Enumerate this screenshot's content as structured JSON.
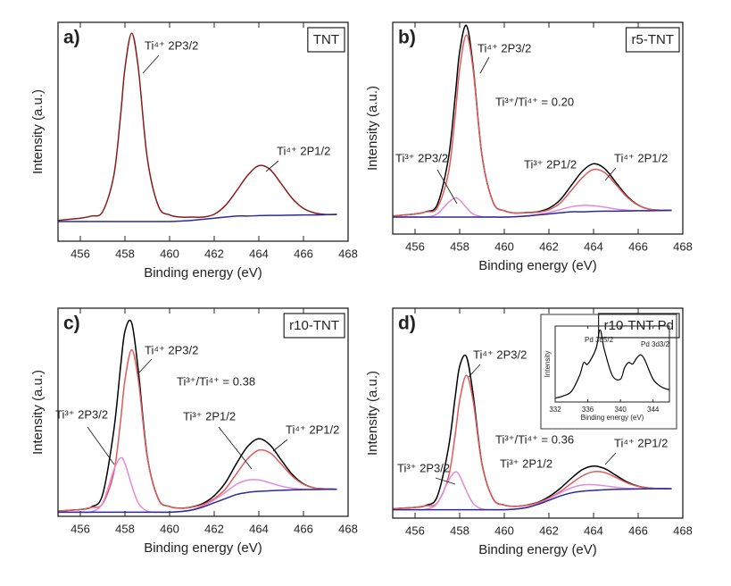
{
  "chart_data": [
    {
      "type": "line",
      "panel_label": "a)",
      "name": "TNT",
      "xlabel": "Binding energy (eV)",
      "ylabel": "Intensity (a.u.)",
      "x": [
        455,
        455.5,
        456,
        456.5,
        457,
        457.5,
        457.8,
        458,
        458.3,
        458.6,
        459,
        459.5,
        460,
        460.5,
        461,
        461.5,
        462,
        462.5,
        463,
        463.5,
        464,
        464.5,
        465,
        465.5,
        466,
        466.5,
        467,
        467.5
      ],
      "xlim": [
        455,
        468
      ],
      "xticks": [
        456,
        458,
        460,
        462,
        464,
        466,
        468
      ],
      "ylim": [
        0,
        100
      ],
      "series": [
        {
          "color": "#8b1a1a",
          "values": [
            9.5,
            10,
            10.5,
            11.5,
            13.5,
            30,
            57,
            79,
            95,
            79,
            38,
            16,
            12,
            11,
            11,
            11,
            12.3,
            16.3,
            23,
            30.1,
            34.5,
            32.8,
            26.3,
            19.5,
            15,
            12.9,
            12.2,
            12.3
          ]
        },
        {
          "color": "#2a2a9a",
          "values": [
            9,
            9,
            9,
            9,
            9,
            9,
            9,
            9,
            9,
            9,
            9,
            9,
            9,
            9.2,
            9.5,
            10,
            10.5,
            11,
            11.5,
            11.5,
            11.7,
            11.8,
            11.8,
            11.9,
            12,
            12,
            12.1,
            12.2
          ]
        }
      ],
      "annotations": [
        "Ti⁴⁺ 2P3/2",
        "Ti⁴⁺ 2P1/2"
      ]
    },
    {
      "type": "line",
      "panel_label": "b)",
      "name": "r5-TNT",
      "xlabel": "Binding energy (eV)",
      "ylabel": "Intensity (a.u.)",
      "x": [
        455,
        455.5,
        456,
        456.5,
        457,
        457.5,
        457.8,
        458,
        458.3,
        458.6,
        459,
        459.5,
        460,
        460.5,
        461,
        461.5,
        462,
        462.5,
        463,
        463.5,
        464,
        464.5,
        465,
        465.5,
        466,
        466.5,
        467,
        467.5
      ],
      "xlim": [
        455,
        468
      ],
      "xticks": [
        456,
        458,
        460,
        462,
        464,
        466,
        468
      ],
      "ylim": [
        0,
        100
      ],
      "series": [
        {
          "color": "#000000",
          "values": [
            8.5,
            9,
            9.5,
            10.6,
            14,
            36,
            65,
            86.1,
            98.5,
            79.5,
            37.2,
            15,
            11,
            9.9,
            10.2,
            10.5,
            12.2,
            16.1,
            22.9,
            29.7,
            33.2,
            30.9,
            24.4,
            17.9,
            13.7,
            11.7,
            11.3,
            11.2
          ]
        },
        {
          "color": "#e05a5a",
          "values": [
            8.5,
            9,
            9.5,
            10.5,
            12.5,
            29,
            56,
            78,
            94,
            78,
            37,
            15,
            11,
            9.9,
            10.1,
            10.3,
            11.5,
            14.6,
            20.5,
            26.7,
            30.5,
            29,
            23.4,
            17.5,
            13.6,
            11.7,
            11.3,
            11.2
          ]
        },
        {
          "color": "#e48ad8",
          "values": [
            8,
            8,
            8,
            8.1,
            9.5,
            15,
            17,
            16.1,
            12.5,
            9.5,
            8.2,
            8,
            8,
            8.2,
            8.6,
            9.2,
            10.2,
            11.5,
            12.9,
            13.5,
            13.4,
            12.7,
            11.8,
            11.3,
            11.1,
            11,
            11.1,
            11.2
          ]
        },
        {
          "color": "#2a2a9a",
          "values": [
            8,
            8,
            8,
            8,
            8,
            8,
            8,
            8,
            8,
            8,
            8,
            8,
            8,
            8.2,
            8.5,
            9,
            9.5,
            10,
            10.5,
            10.5,
            10.7,
            10.8,
            10.8,
            10.9,
            11,
            11,
            11.1,
            11.2
          ]
        }
      ],
      "annotations": [
        "Ti⁴⁺ 2P3/2",
        "Ti³⁺/Ti⁴⁺ = 0.20",
        "Ti³⁺ 2P3/2",
        "Ti³⁺ 2P1/2",
        "Ti⁴⁺ 2P1/2"
      ]
    },
    {
      "type": "line",
      "panel_label": "c)",
      "name": "r10-TNT",
      "xlabel": "Binding energy (eV)",
      "ylabel": "Intensity (a.u.)",
      "x": [
        455,
        455.5,
        456,
        456.5,
        457,
        457.5,
        457.8,
        458,
        458.3,
        458.6,
        459,
        459.5,
        460,
        460.5,
        461,
        461.5,
        462,
        462.5,
        463,
        463.5,
        464,
        464.5,
        465,
        465.5,
        466,
        466.5,
        467,
        467.5
      ],
      "xlim": [
        455,
        468
      ],
      "xticks": [
        456,
        458,
        460,
        462,
        464,
        466,
        468
      ],
      "ylim": [
        0,
        100
      ],
      "series": [
        {
          "color": "#000000",
          "values": [
            2.5,
            2.9,
            3.3,
            4.5,
            10.5,
            41.3,
            71.5,
            88.9,
            93,
            69.9,
            28.8,
            8.3,
            4.7,
            3.9,
            4.5,
            6.2,
            9.9,
            16.1,
            25.4,
            33.6,
            37.3,
            34.3,
            27.1,
            20.1,
            15.6,
            13.6,
            13.2,
            13
          ]
        },
        {
          "color": "#e05a5a",
          "values": [
            2.5,
            2.9,
            3.3,
            4.3,
            6.1,
            21,
            45.5,
            65.5,
            80,
            65.5,
            28.3,
            8.3,
            4.7,
            3.9,
            4.4,
            5.7,
            8.5,
            13.1,
            20.5,
            27.7,
            31.8,
            30.5,
            25.1,
            19.3,
            15.4,
            13.6,
            13.2,
            13
          ]
        },
        {
          "color": "#e48ad8",
          "values": [
            2,
            2,
            2,
            2.2,
            6.4,
            22.3,
            28,
            25.4,
            15,
            6.4,
            2.5,
            2,
            2,
            2.3,
            3.1,
            5,
            7.9,
            11.5,
            15.4,
            17.4,
            17.5,
            16.1,
            14.5,
            13.5,
            13,
            12.9,
            13,
            13
          ]
        },
        {
          "color": "#2a2a9a",
          "values": [
            2,
            2,
            2,
            2,
            2,
            2,
            2,
            2,
            2,
            2,
            2,
            2,
            2,
            2.3,
            3,
            4.5,
            6.5,
            8.5,
            10.5,
            11.5,
            12,
            12.3,
            12.5,
            12.7,
            12.8,
            12.9,
            13,
            13
          ]
        }
      ],
      "annotations": [
        "Ti⁴⁺ 2P3/2",
        "Ti³⁺/Ti⁴⁺ = 0.38",
        "Ti³⁺ 2P3/2",
        "Ti³⁺ 2P1/2",
        "Ti⁴⁺ 2P1/2"
      ]
    },
    {
      "type": "line",
      "panel_label": "d)",
      "name": "r10-TNT-Pd",
      "xlabel": "Binding energy (eV)",
      "ylabel": "Intensity (a.u.)",
      "x": [
        455,
        455.5,
        456,
        456.5,
        457,
        457.5,
        457.8,
        458,
        458.3,
        458.6,
        459,
        459.5,
        460,
        460.5,
        461,
        461.5,
        462,
        462.5,
        463,
        463.5,
        464,
        464.5,
        465,
        465.5,
        466,
        466.5,
        467,
        467.5
      ],
      "xlim": [
        455,
        468
      ],
      "xticks": [
        456,
        458,
        460,
        462,
        464,
        466,
        468
      ],
      "ylim": [
        0,
        100
      ],
      "series": [
        {
          "color": "#000000",
          "values": [
            4.4,
            4.8,
            5.1,
            6.1,
            10.4,
            33.6,
            57.7,
            72.3,
            77,
            59.2,
            25.9,
            9.2,
            6.2,
            5.6,
            6.2,
            7.5,
            10.2,
            14.1,
            18.9,
            23.1,
            24.8,
            23.6,
            20.4,
            17.2,
            15.2,
            14.3,
            14.1,
            14
          ]
        },
        {
          "color": "#e05a5a",
          "values": [
            4.4,
            4.8,
            5.1,
            5.9,
            7.3,
            19.6,
            39.7,
            56.1,
            68,
            56.1,
            25.6,
            9.2,
            6.2,
            5.6,
            6.1,
            7.3,
            9.5,
            12.6,
            16.5,
            20.1,
            22.1,
            21.7,
            19.4,
            16.8,
            15.1,
            14.3,
            14.1,
            14
          ]
        },
        {
          "color": "#e48ad8",
          "values": [
            4,
            4,
            4,
            4.2,
            7.1,
            18,
            22,
            20.2,
            13,
            7.1,
            4.3,
            4,
            4,
            4.3,
            5.1,
            6.7,
            9.2,
            12,
            14.4,
            15.8,
            15.9,
            15.4,
            14.7,
            14.2,
            14,
            14,
            14,
            14
          ]
        },
        {
          "color": "#2a2a9a",
          "values": [
            4,
            4,
            4,
            4,
            4,
            4,
            4,
            4,
            4,
            4,
            4,
            4,
            4,
            4.3,
            5,
            6.5,
            8.5,
            10.5,
            12,
            12.8,
            13.2,
            13.5,
            13.7,
            13.8,
            13.9,
            14,
            14,
            14
          ]
        }
      ],
      "annotations": [
        "Ti⁴⁺ 2P3/2",
        "Ti³⁺/Ti⁴⁺ = 0.36",
        "Ti³⁺ 2P3/2",
        "Ti³⁺ 2P1/2",
        "Ti⁴⁺ 2P1/2"
      ]
    },
    {
      "type": "line",
      "xlabel": "Binding energy (eV)",
      "ylabel": "Intensity",
      "x": [
        332,
        333,
        334,
        335,
        335.5,
        336,
        337,
        337.5,
        338,
        339,
        340,
        340.5,
        341,
        341.5,
        342,
        342.5,
        343,
        344,
        345,
        346
      ],
      "xlim": [
        332,
        346
      ],
      "xticks": [
        332,
        336,
        340,
        344
      ],
      "ylim": [
        0,
        100
      ],
      "series": [
        {
          "color": "#000000",
          "values": [
            5,
            8,
            14,
            35,
            52,
            50,
            70,
            95,
            70,
            35,
            30,
            45,
            52,
            50,
            58,
            62,
            55,
            30,
            20,
            16
          ]
        }
      ],
      "annotations": [
        "Pd 3d5/2",
        "Pd 3d3/2"
      ]
    }
  ]
}
